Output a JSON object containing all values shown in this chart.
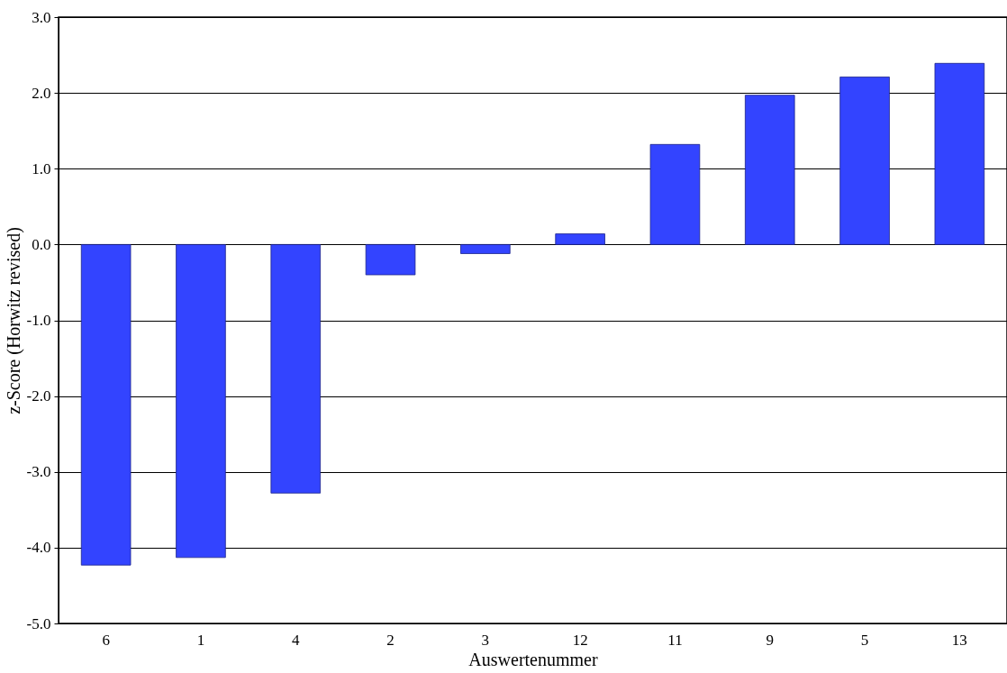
{
  "chart_data": {
    "type": "bar",
    "xlabel": "Auswertenummer",
    "ylabel": "z-Score (Horwitz revised)",
    "categories": [
      "6",
      "1",
      "4",
      "2",
      "3",
      "12",
      "11",
      "9",
      "5",
      "13"
    ],
    "values": [
      -4.23,
      -4.13,
      -3.28,
      -0.4,
      -0.12,
      0.14,
      1.32,
      1.97,
      2.21,
      2.39
    ],
    "color": "#3344ff",
    "ylim": [
      -5.0,
      3.0
    ],
    "yticks": [
      {
        "value": -5,
        "label": "-5.0"
      },
      {
        "value": -4,
        "label": "-4.0"
      },
      {
        "value": -3,
        "label": "-3.0"
      },
      {
        "value": -2,
        "label": "-2.0"
      },
      {
        "value": -1,
        "label": "-1.0"
      },
      {
        "value": 0,
        "label": "0.0"
      },
      {
        "value": 1,
        "label": "1.0"
      },
      {
        "value": 2,
        "label": "2.0"
      },
      {
        "value": 3,
        "label": "3.0"
      }
    ],
    "grid": "y"
  }
}
